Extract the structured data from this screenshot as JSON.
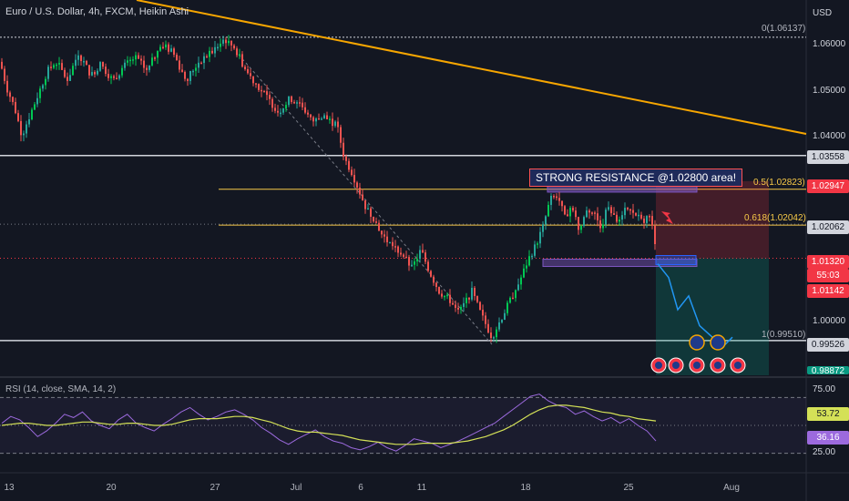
{
  "header": {
    "title": "Euro / U.S. Dollar, 4h, FXCM, Heikin Ashi",
    "currency": "USD"
  },
  "annotation": {
    "resistance_text": "STRONG RESISTANCE @1.02800 area!"
  },
  "fib_labels": {
    "f0": "0(1.06137)",
    "f05": "0.5(1.02823)",
    "f0618": "0.618(1.02042)",
    "f1": "1(0.99510)"
  },
  "price_axis": {
    "ticks": [
      "1.06000",
      "1.05000",
      "1.04000",
      "1.00000"
    ],
    "tags": {
      "level_103558": "1.03558",
      "price_102947": "1.02947",
      "level_102062": "1.02062",
      "last_price": "1.01320",
      "countdown": "55:03",
      "price_101142": "1.01142",
      "level_099526": "0.99526",
      "bottom_tag": "0.98872"
    }
  },
  "rsi_panel": {
    "title": "RSI (14, close, SMA, 14, 2)",
    "ticks": [
      "75.00",
      "25.00"
    ],
    "value_rsi": "36.16",
    "value_sma": "53.72"
  },
  "time_axis": {
    "labels": [
      "13",
      "20",
      "27",
      "Jul",
      "6",
      "11",
      "18",
      "25",
      "Aug"
    ]
  },
  "colors": {
    "background": "#131722",
    "up": "#26a69a",
    "up_bright": "#00c853",
    "down": "#ef5350",
    "trendline": "#f7a600",
    "fib": "#f7c948",
    "rsi_line": "#9c6ade",
    "rsi_sma": "#d4e157",
    "projection": "#2196f3"
  },
  "chart_data": {
    "type": "candlestick",
    "title": "Euro / U.S. Dollar, 4h, FXCM, Heikin Ashi",
    "ylim": [
      0.9877,
      1.0659
    ],
    "x_labels": [
      "13",
      "20",
      "27",
      "Jul",
      "6",
      "11",
      "18",
      "25",
      "Aug"
    ],
    "key_levels": [
      1.06137,
      1.03558,
      1.02823,
      1.02042,
      1.0132,
      0.9951,
      0.99526
    ],
    "price_path": [
      [
        0,
        1.056
      ],
      [
        8,
        1.05
      ],
      [
        16,
        1.046
      ],
      [
        24,
        1.04
      ],
      [
        32,
        1.044
      ],
      [
        40,
        1.048
      ],
      [
        52,
        1.054
      ],
      [
        62,
        1.056
      ],
      [
        74,
        1.052
      ],
      [
        86,
        1.058
      ],
      [
        100,
        1.053
      ],
      [
        110,
        1.0555
      ],
      [
        124,
        1.052
      ],
      [
        136,
        1.055
      ],
      [
        148,
        1.057
      ],
      [
        162,
        1.054
      ],
      [
        176,
        1.06
      ],
      [
        190,
        1.058
      ],
      [
        204,
        1.052
      ],
      [
        218,
        1.056
      ],
      [
        232,
        1.058
      ],
      [
        246,
        1.061
      ],
      [
        258,
        1.059
      ],
      [
        270,
        1.054
      ],
      [
        282,
        1.051
      ],
      [
        294,
        1.048
      ],
      [
        306,
        1.045
      ],
      [
        318,
        1.048
      ],
      [
        330,
        1.047
      ],
      [
        342,
        1.043
      ],
      [
        356,
        1.044
      ],
      [
        370,
        1.042
      ],
      [
        378,
        1.035
      ],
      [
        386,
        1.032
      ],
      [
        394,
        1.028
      ],
      [
        402,
        1.024
      ],
      [
        410,
        1.022
      ],
      [
        420,
        1.018
      ],
      [
        430,
        1.016
      ],
      [
        442,
        1.014
      ],
      [
        452,
        1.011
      ],
      [
        462,
        1.015
      ],
      [
        472,
        1.01
      ],
      [
        482,
        1.006
      ],
      [
        494,
        1.004
      ],
      [
        506,
        1.002
      ],
      [
        518,
        1.006
      ],
      [
        528,
        1.001
      ],
      [
        540,
        0.996
      ],
      [
        550,
        1.0
      ],
      [
        560,
        1.004
      ],
      [
        570,
        1.008
      ],
      [
        580,
        1.013
      ],
      [
        588,
        1.016
      ],
      [
        596,
        1.02
      ],
      [
        604,
        1.026
      ],
      [
        612,
        1.027
      ],
      [
        620,
        1.022
      ],
      [
        628,
        1.025
      ],
      [
        636,
        1.019
      ],
      [
        644,
        1.024
      ],
      [
        652,
        1.023
      ],
      [
        660,
        1.02
      ],
      [
        668,
        1.025
      ],
      [
        676,
        1.021
      ],
      [
        686,
        1.024
      ],
      [
        696,
        1.023
      ],
      [
        706,
        1.021
      ],
      [
        714,
        1.0235
      ],
      [
        720,
        1.014
      ]
    ],
    "projection_path": [
      [
        722,
        1.012
      ],
      [
        734,
        1.009
      ],
      [
        744,
        1.002
      ],
      [
        756,
        1.005
      ],
      [
        768,
        0.9985
      ],
      [
        782,
        0.996
      ],
      [
        794,
        0.994
      ],
      [
        804,
        0.996
      ]
    ],
    "rsi": {
      "ylim": [
        10,
        90
      ],
      "levels": [
        75,
        50,
        25
      ],
      "rsi_series": [
        52,
        58,
        55,
        48,
        40,
        45,
        52,
        60,
        57,
        62,
        54,
        50,
        47,
        55,
        60,
        52,
        48,
        45,
        51,
        56,
        62,
        66,
        60,
        55,
        58,
        62,
        64,
        60,
        55,
        48,
        43,
        37,
        33,
        38,
        42,
        46,
        40,
        36,
        34,
        30,
        28,
        31,
        35,
        30,
        27,
        32,
        38,
        36,
        34,
        30,
        33,
        36,
        40,
        44,
        48,
        52,
        58,
        64,
        70,
        76,
        78,
        72,
        68,
        66,
        60,
        63,
        58,
        54,
        57,
        52,
        56,
        50,
        45,
        36
      ],
      "sma_series": [
        50,
        51,
        52,
        52,
        51,
        50,
        50,
        51,
        52,
        53,
        53,
        52,
        51,
        51,
        52,
        52,
        51,
        50,
        50,
        51,
        53,
        55,
        56,
        56,
        56,
        57,
        58,
        58,
        57,
        55,
        53,
        50,
        47,
        45,
        44,
        44,
        43,
        42,
        41,
        39,
        37,
        36,
        35,
        34,
        33,
        33,
        33,
        34,
        34,
        34,
        34,
        35,
        36,
        38,
        40,
        43,
        46,
        50,
        55,
        60,
        64,
        67,
        68,
        68,
        67,
        66,
        64,
        62,
        61,
        59,
        58,
        56,
        55,
        54
      ]
    }
  }
}
